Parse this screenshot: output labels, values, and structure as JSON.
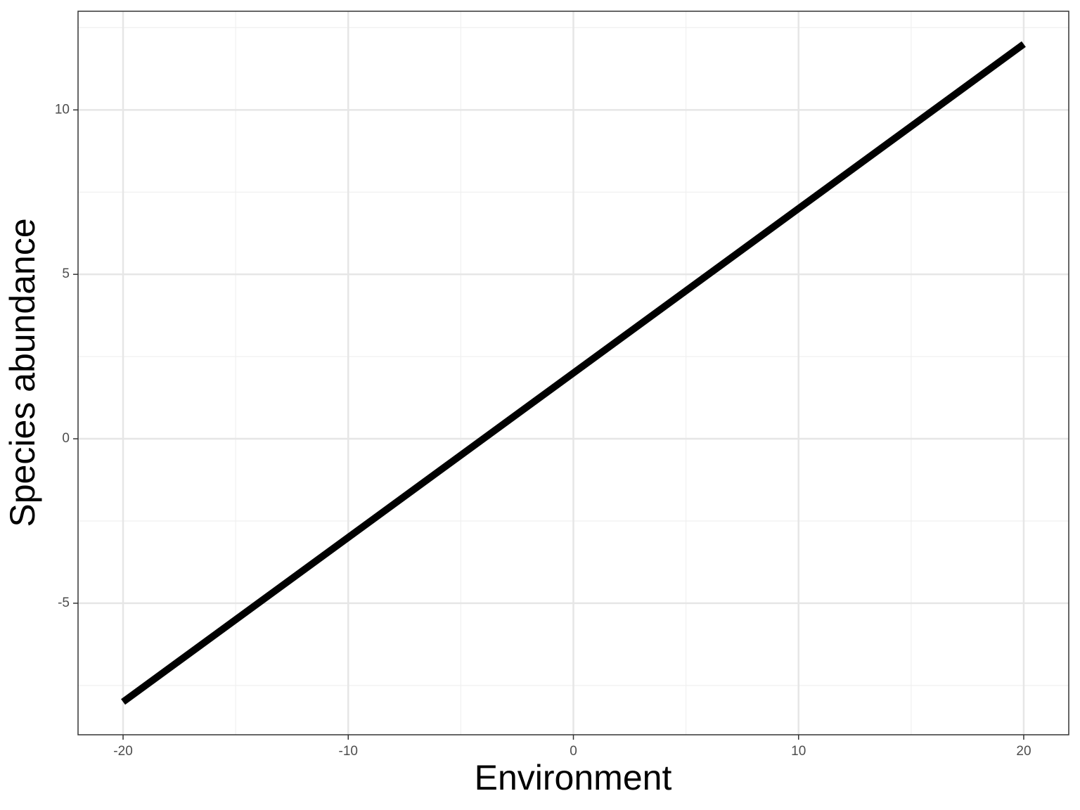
{
  "chart_data": {
    "type": "line",
    "x_label": "Environment",
    "y_label": "Species abundance",
    "x": [
      -20,
      20
    ],
    "series": [
      {
        "color": "#000000",
        "values": [
          -8,
          12
        ]
      }
    ],
    "xlim": [
      -22,
      22
    ],
    "ylim": [
      -9,
      13
    ],
    "xticks": [
      -20,
      -10,
      0,
      10,
      20
    ],
    "yticks": [
      -5,
      0,
      5,
      10
    ],
    "x_minor_ticks": [
      -15,
      -5,
      5,
      15
    ],
    "y_minor_ticks": [
      -7.5,
      -2.5,
      2.5,
      7.5,
      12.5
    ],
    "grid": true
  }
}
